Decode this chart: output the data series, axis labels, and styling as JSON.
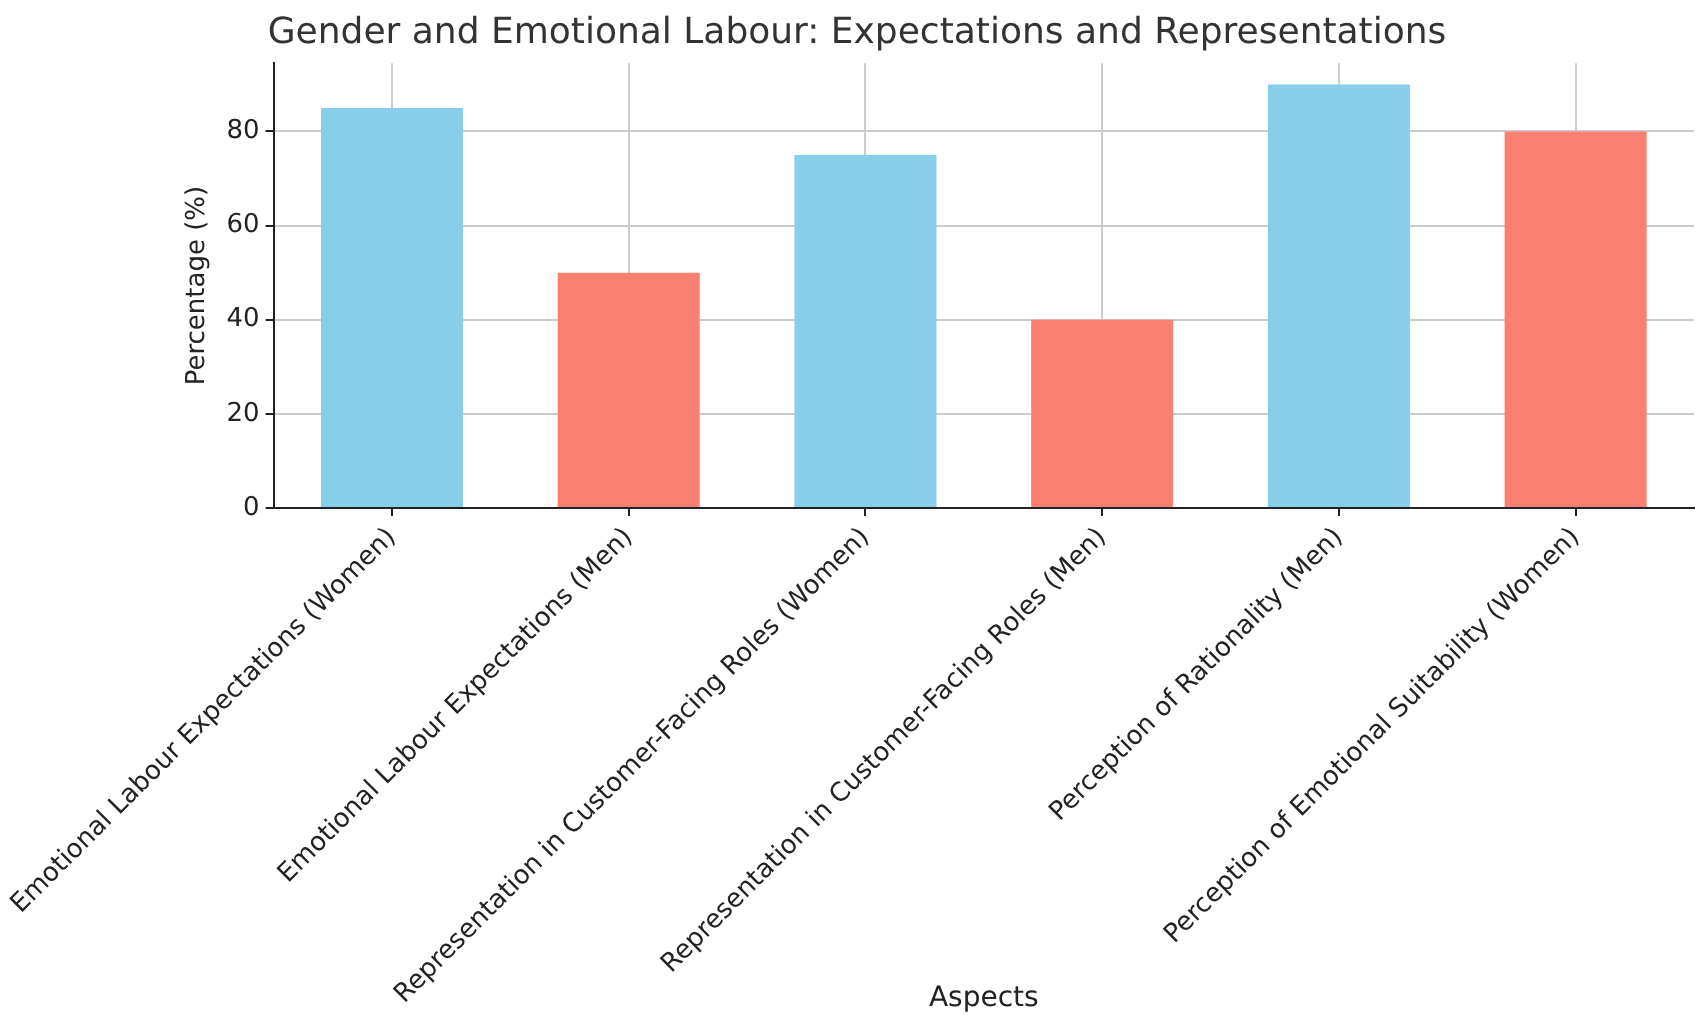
{
  "chart_data": {
    "type": "bar",
    "title": "Gender and Emotional Labour: Expectations and Representations",
    "xlabel": "Aspects",
    "ylabel": "Percentage (%)",
    "categories": [
      "Emotional Labour Expectations (Women)",
      "Emotional Labour Expectations (Men)",
      "Representation in Customer-Facing Roles (Women)",
      "Representation in Customer-Facing Roles (Men)",
      "Perception of Rationality (Men)",
      "Perception of Emotional Suitability (Women)"
    ],
    "values": [
      85,
      50,
      75,
      40,
      90,
      80
    ],
    "colors": [
      "#87ceeb",
      "#fa8072",
      "#87ceeb",
      "#fa8072",
      "#87ceeb",
      "#fa8072"
    ],
    "ylim": [
      0,
      94.5
    ],
    "yticks": [
      0,
      20,
      40,
      60,
      80
    ],
    "grid": true
  }
}
